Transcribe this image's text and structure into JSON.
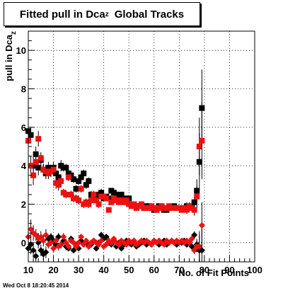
{
  "chart_data": {
    "type": "scatter",
    "title_main": "Fitted pull in Dca",
    "title_sub": "z",
    "title_tail": "Global Tracks",
    "xlabel": "No. of Fit Points",
    "ylabel": "pull in Dca",
    "ylabel_sub": "z",
    "xlim": [
      10,
      100
    ],
    "ylim": [
      -1,
      11
    ],
    "x_ticks": [
      10,
      20,
      30,
      40,
      50,
      60,
      70,
      80,
      90,
      100
    ],
    "y_ticks": [
      0,
      2,
      4,
      6,
      8,
      10
    ],
    "grid": true,
    "colors": {
      "black_series": "#000000",
      "red_series": "#ee1111",
      "marker_line": "#000000"
    },
    "series": [
      {
        "color": "black",
        "marker": "square",
        "x": [
          10,
          11,
          12,
          13,
          14,
          15,
          16,
          17,
          18,
          19,
          20,
          21,
          22,
          23,
          24,
          25,
          26,
          27,
          28,
          29,
          30,
          31,
          32,
          33,
          34,
          35,
          36,
          37,
          38,
          39,
          40,
          41,
          42,
          43,
          44,
          45,
          46,
          47,
          48,
          49,
          50,
          51,
          52,
          53,
          54,
          55,
          56,
          57,
          58,
          59,
          60,
          61,
          62,
          63,
          64,
          65,
          66,
          67,
          68,
          69,
          70,
          71,
          72,
          73,
          74,
          75,
          76,
          77,
          78,
          79
        ],
        "y": [
          5.8,
          5.6,
          4.0,
          4.6,
          3.9,
          4.3,
          3.8,
          3.6,
          3.9,
          3.7,
          3.9,
          3.6,
          3.4,
          4.0,
          3.9,
          3.9,
          3.6,
          3.5,
          3.3,
          2.8,
          3.2,
          3.4,
          3.6,
          3.0,
          3.2,
          2.5,
          2.3,
          2.4,
          2.5,
          2.6,
          2.3,
          2.4,
          2.3,
          2.7,
          2.6,
          2.5,
          2.4,
          2.5,
          2.2,
          2.3,
          2.3,
          2.0,
          2.0,
          1.9,
          1.9,
          2.0,
          1.8,
          1.9,
          1.9,
          1.8,
          1.7,
          1.7,
          1.9,
          1.8,
          1.7,
          1.7,
          1.8,
          1.8,
          1.9,
          1.8,
          1.8,
          1.8,
          1.8,
          1.9,
          1.8,
          1.9,
          2.1,
          2.7,
          4.2,
          7.0
        ],
        "errors": [
          0.5,
          0.4,
          0.5,
          0.4,
          0.4,
          0.3,
          0.3,
          0.3,
          0.3,
          0.3,
          0.3,
          0.3,
          0.3,
          0.3,
          0.2,
          0.2,
          0.2,
          0.2,
          0.2,
          0.2,
          0.2,
          0.2,
          0.2,
          0.2,
          0.2,
          0.2,
          0.2,
          0.2,
          0.2,
          0.2,
          0.1,
          0.1,
          0.1,
          0.1,
          0.1,
          0.1,
          0.1,
          0.1,
          0.1,
          0.1,
          0.1,
          0.1,
          0.1,
          0.1,
          0.1,
          0.1,
          0.1,
          0.1,
          0.1,
          0.1,
          0.1,
          0.1,
          0.1,
          0.1,
          0.1,
          0.1,
          0.1,
          0.1,
          0.1,
          0.1,
          0.1,
          0.1,
          0.1,
          0.2,
          0.2,
          0.2,
          0.3,
          0.6,
          1.5,
          2.0
        ]
      },
      {
        "color": "red",
        "marker": "square",
        "x": [
          10,
          11,
          12,
          13,
          14,
          15,
          16,
          17,
          18,
          19,
          20,
          21,
          22,
          23,
          24,
          25,
          26,
          27,
          28,
          29,
          30,
          31,
          32,
          33,
          34,
          35,
          36,
          37,
          38,
          39,
          40,
          41,
          42,
          43,
          44,
          45,
          46,
          47,
          48,
          49,
          50,
          51,
          52,
          53,
          54,
          55,
          56,
          57,
          58,
          59,
          60,
          61,
          62,
          63,
          64,
          65,
          66,
          67,
          68,
          69,
          70,
          71,
          72,
          73,
          74,
          75,
          76,
          77,
          78,
          79
        ],
        "y": [
          5.3,
          4.0,
          3.5,
          4.2,
          5.4,
          4.4,
          3.8,
          3.7,
          3.6,
          3.7,
          3.8,
          3.1,
          3.0,
          3.2,
          2.6,
          2.5,
          3.4,
          2.5,
          2.3,
          2.3,
          2.2,
          2.8,
          2.0,
          2.1,
          2.0,
          2.2,
          2.5,
          2.2,
          2.0,
          2.4,
          2.4,
          2.3,
          1.7,
          2.1,
          2.3,
          2.2,
          2.1,
          2.2,
          2.1,
          2.2,
          2.0,
          1.9,
          2.0,
          1.8,
          1.9,
          2.0,
          1.8,
          1.8,
          1.8,
          1.9,
          1.8,
          1.7,
          1.8,
          1.9,
          1.8,
          1.8,
          1.9,
          1.8,
          1.8,
          1.8,
          1.8,
          1.7,
          1.8,
          1.7,
          1.9,
          1.8,
          1.7,
          2.4,
          5.0,
          5.3
        ],
        "errors": [
          0.5,
          0.5,
          0.5,
          0.4,
          0.4,
          0.3,
          0.3,
          0.3,
          0.3,
          0.3,
          0.3,
          0.3,
          0.3,
          0.3,
          0.2,
          0.2,
          0.2,
          0.2,
          0.2,
          0.2,
          0.2,
          0.2,
          0.2,
          0.2,
          0.2,
          0.2,
          0.2,
          0.2,
          0.2,
          0.2,
          0.1,
          0.1,
          0.1,
          0.1,
          0.1,
          0.1,
          0.1,
          0.1,
          0.1,
          0.1,
          0.1,
          0.1,
          0.1,
          0.1,
          0.1,
          0.1,
          0.1,
          0.1,
          0.1,
          0.1,
          0.1,
          0.1,
          0.1,
          0.1,
          0.1,
          0.1,
          0.1,
          0.1,
          0.1,
          0.1,
          0.1,
          0.1,
          0.1,
          0.2,
          0.2,
          0.2,
          0.3,
          0.6,
          1.5,
          2.0
        ]
      },
      {
        "color": "black",
        "marker": "diamond",
        "x": [
          10,
          11,
          12,
          13,
          14,
          15,
          16,
          17,
          18,
          19,
          20,
          21,
          22,
          23,
          24,
          25,
          26,
          27,
          28,
          29,
          30,
          31,
          32,
          33,
          34,
          35,
          36,
          37,
          38,
          39,
          40,
          41,
          42,
          43,
          44,
          45,
          46,
          47,
          48,
          49,
          50,
          51,
          52,
          53,
          54,
          55,
          56,
          57,
          58,
          59,
          60,
          61,
          62,
          63,
          64,
          65,
          66,
          67,
          68,
          69,
          70,
          71,
          72,
          73,
          74,
          75,
          76,
          77,
          78,
          79
        ],
        "y": [
          -0.3,
          -0.1,
          -0.4,
          -0.7,
          0.0,
          -0.4,
          -0.6,
          -0.5,
          0.2,
          0.3,
          0.1,
          -0.1,
          0.3,
          -0.1,
          0.1,
          -0.2,
          -0.3,
          0.2,
          -0.4,
          -0.1,
          -0.3,
          0.1,
          -0.1,
          0.0,
          -0.2,
          -0.1,
          0.1,
          -0.3,
          0.0,
          0.4,
          0.2,
          0.3,
          0.0,
          -0.1,
          0.1,
          -0.2,
          0.0,
          -0.3,
          -0.1,
          0.1,
          0.0,
          -0.1,
          0.1,
          -0.2,
          -0.1,
          0.0,
          0.1,
          -0.1,
          0.0,
          -0.1,
          0.1,
          0.0,
          -0.1,
          0.0,
          0.1,
          -0.1,
          0.0,
          0.1,
          0.0,
          -0.1,
          0.0,
          0.0,
          0.1,
          -0.1,
          0.0,
          -0.2,
          0.4,
          -0.1,
          -0.4,
          -0.4
        ],
        "errors": [
          0.6,
          0.5,
          0.4,
          0.3,
          0.3,
          0.3,
          0.3,
          0.3,
          0.2,
          0.2,
          0.2,
          0.2,
          0.2,
          0.2,
          0.2,
          0.2,
          0.1,
          0.1,
          0.1,
          0.1,
          0.1,
          0.1,
          0.1,
          0.1,
          0.1,
          0.1,
          0.1,
          0.1,
          0.1,
          0.1,
          0.1,
          0.1,
          0.1,
          0.1,
          0.1,
          0.1,
          0.1,
          0.1,
          0.1,
          0.1,
          0.1,
          0.1,
          0.1,
          0.1,
          0.1,
          0.1,
          0.1,
          0.1,
          0.1,
          0.1,
          0.1,
          0.1,
          0.1,
          0.1,
          0.1,
          0.1,
          0.1,
          0.1,
          0.1,
          0.1,
          0.1,
          0.1,
          0.1,
          0.1,
          0.1,
          0.1,
          0.2,
          0.3,
          0.8,
          1.2
        ]
      },
      {
        "color": "red",
        "marker": "diamond",
        "x": [
          10,
          11,
          12,
          13,
          14,
          15,
          16,
          17,
          18,
          19,
          20,
          21,
          22,
          23,
          24,
          25,
          26,
          27,
          28,
          29,
          30,
          31,
          32,
          33,
          34,
          35,
          36,
          37,
          38,
          39,
          40,
          41,
          42,
          43,
          44,
          45,
          46,
          47,
          48,
          49,
          50,
          51,
          52,
          53,
          54,
          55,
          56,
          57,
          58,
          59,
          60,
          61,
          62,
          63,
          64,
          65,
          66,
          67,
          68,
          69,
          70,
          71,
          72,
          73,
          74,
          75,
          76,
          77,
          78,
          79
        ],
        "y": [
          0.3,
          0.7,
          0.5,
          0.4,
          0.2,
          0.3,
          0.1,
          0.4,
          -0.1,
          0.0,
          -0.3,
          0.1,
          -0.2,
          -0.1,
          0.3,
          0.0,
          -0.2,
          0.1,
          0.0,
          -0.2,
          0.0,
          0.3,
          -0.1,
          0.1,
          -0.2,
          0.0,
          0.1,
          0.0,
          -0.1,
          0.1,
          -0.2,
          -0.1,
          0.1,
          0.0,
          0.2,
          0.0,
          -0.1,
          0.1,
          0.0,
          -0.1,
          0.1,
          0.0,
          0.1,
          -0.1,
          0.0,
          0.1,
          0.0,
          0.1,
          0.0,
          -0.1,
          0.1,
          0.0,
          0.1,
          0.0,
          -0.1,
          0.1,
          0.0,
          0.1,
          0.0,
          0.1,
          0.0,
          0.1,
          0.0,
          0.1,
          0.0,
          0.2,
          -0.4,
          -0.2,
          -0.2,
          0.9
        ],
        "errors": [
          0.6,
          0.5,
          0.4,
          0.3,
          0.3,
          0.3,
          0.3,
          0.3,
          0.2,
          0.2,
          0.2,
          0.2,
          0.2,
          0.2,
          0.2,
          0.2,
          0.1,
          0.1,
          0.1,
          0.1,
          0.1,
          0.1,
          0.1,
          0.1,
          0.1,
          0.1,
          0.1,
          0.1,
          0.1,
          0.1,
          0.1,
          0.1,
          0.1,
          0.1,
          0.1,
          0.1,
          0.1,
          0.1,
          0.1,
          0.1,
          0.1,
          0.1,
          0.1,
          0.1,
          0.1,
          0.1,
          0.1,
          0.1,
          0.1,
          0.1,
          0.1,
          0.1,
          0.1,
          0.1,
          0.1,
          0.1,
          0.1,
          0.1,
          0.1,
          0.1,
          0.1,
          0.1,
          0.1,
          0.1,
          0.1,
          0.1,
          0.2,
          0.3,
          0.8,
          1.2
        ]
      }
    ]
  },
  "footer": {
    "timestamp": "Wed Oct  8 18:20:45 2014"
  }
}
